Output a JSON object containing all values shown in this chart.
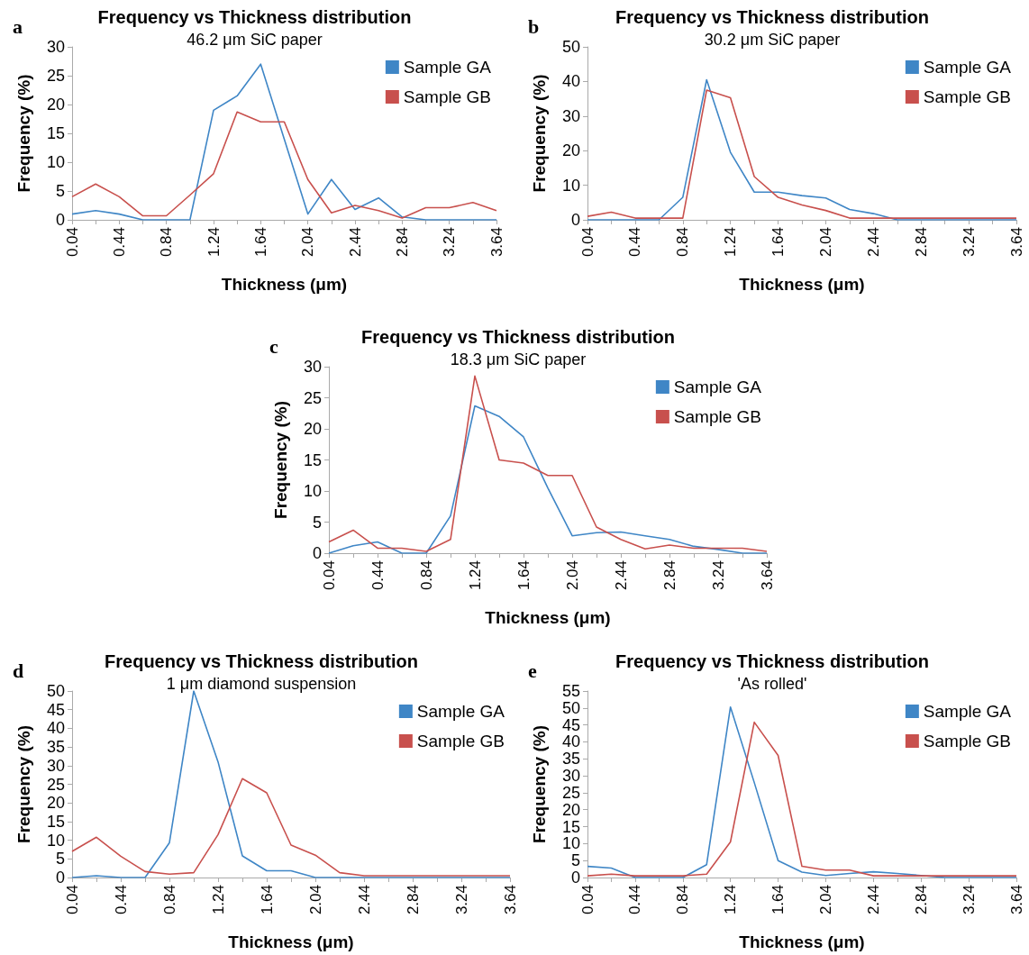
{
  "chart_data": [
    {
      "type": "line",
      "title": "Frequency vs Thickness distribution",
      "subtitle": "46.2 μm SiC paper",
      "xlabel": "Thickness (μm)",
      "ylabel": "Frequency (%)",
      "annotations": [
        "a"
      ],
      "legend": "top right",
      "marker": "none",
      "categories": [
        "0.04",
        null,
        "0.44",
        null,
        "0.84",
        null,
        "1.24",
        null,
        "1.64",
        null,
        "2.04",
        null,
        "2.44",
        null,
        "2.84",
        null,
        "3.24",
        null,
        "3.64"
      ],
      "ylim": [
        0,
        30
      ],
      "yticks": [
        0,
        5,
        10,
        15,
        20,
        25,
        30
      ],
      "series": [
        {
          "name": "Sample GA",
          "color": "#3f86c6",
          "values": [
            1,
            1.6,
            1,
            0,
            0,
            0,
            19,
            21.5,
            27,
            14,
            1,
            7,
            1.8,
            3.8,
            0.5,
            0,
            0,
            0,
            0
          ]
        },
        {
          "name": "Sample GB",
          "color": "#c8504d",
          "values": [
            4,
            6.2,
            4,
            0.7,
            0.7,
            4.3,
            8,
            18.7,
            17,
            17,
            7,
            1.2,
            2.5,
            1.6,
            0.3,
            2.1,
            2.1,
            3,
            1.6
          ]
        }
      ]
    },
    {
      "type": "line",
      "title": "Frequency vs Thickness distribution",
      "subtitle": "30.2 μm SiC paper",
      "xlabel": "Thickness (μm)",
      "ylabel": "Frequency (%)",
      "annotations": [
        "b"
      ],
      "legend": "top right",
      "marker": "none",
      "categories": [
        "0.04",
        null,
        "0.44",
        null,
        "0.84",
        null,
        "1.24",
        null,
        "1.64",
        null,
        "2.04",
        null,
        "2.44",
        null,
        "2.84",
        null,
        "3.24",
        null,
        "3.64"
      ],
      "ylim": [
        0,
        50
      ],
      "yticks": [
        0,
        10,
        20,
        30,
        40,
        50
      ],
      "series": [
        {
          "name": "Sample GA",
          "color": "#3f86c6",
          "values": [
            0,
            0,
            0,
            0,
            6.5,
            40.5,
            19.5,
            8,
            8,
            7,
            6.3,
            3,
            1.8,
            0,
            0,
            0,
            0,
            0,
            0
          ]
        },
        {
          "name": "Sample GB",
          "color": "#c8504d",
          "values": [
            1,
            2.2,
            0.5,
            0.5,
            0.5,
            37.5,
            35.3,
            12.5,
            6.5,
            4.3,
            2.7,
            0.5,
            0.5,
            0.5,
            0.5,
            0.5,
            0.5,
            0.5,
            0.5
          ]
        }
      ]
    },
    {
      "type": "line",
      "title": "Frequency vs Thickness distribution",
      "subtitle": "18.3 μm SiC paper",
      "xlabel": "Thickness (μm)",
      "ylabel": "Frequency (%)",
      "annotations": [
        "c"
      ],
      "legend": "top right",
      "marker": "none",
      "categories": [
        "0.04",
        null,
        "0.44",
        null,
        "0.84",
        null,
        "1.24",
        null,
        "1.64",
        null,
        "2.04",
        null,
        "2.44",
        null,
        "2.84",
        null,
        "3.24",
        null,
        "3.64"
      ],
      "ylim": [
        0,
        30
      ],
      "yticks": [
        0,
        5,
        10,
        15,
        20,
        25,
        30
      ],
      "series": [
        {
          "name": "Sample GA",
          "color": "#3f86c6",
          "values": [
            0,
            1.2,
            1.8,
            0,
            0,
            6,
            23.7,
            22,
            18.7,
            10.5,
            2.8,
            3.3,
            3.4,
            2.8,
            2.2,
            1.1,
            0.6,
            0,
            0
          ]
        },
        {
          "name": "Sample GB",
          "color": "#c8504d",
          "values": [
            1.8,
            3.7,
            0.8,
            0.8,
            0.3,
            2.2,
            28.5,
            15,
            14.5,
            12.5,
            12.5,
            4.2,
            2.2,
            0.7,
            1.3,
            0.8,
            0.8,
            0.8,
            0.3
          ]
        }
      ]
    },
    {
      "type": "line",
      "title": "Frequency vs Thickness distribution",
      "subtitle": "1 μm diamond suspension",
      "xlabel": "Thickness (μm)",
      "ylabel": "Frequency (%)",
      "annotations": [
        "d"
      ],
      "legend": "top right",
      "marker": "none",
      "categories": [
        "0.04",
        null,
        "0.44",
        null,
        "0.84",
        null,
        "1.24",
        null,
        "1.64",
        null,
        "2.04",
        null,
        "2.44",
        null,
        "2.84",
        null,
        "3.24",
        null,
        "3.64"
      ],
      "ylim": [
        0,
        50
      ],
      "yticks": [
        0,
        5,
        10,
        15,
        20,
        25,
        30,
        35,
        40,
        45,
        50
      ],
      "series": [
        {
          "name": "Sample GA",
          "color": "#3f86c6",
          "values": [
            0,
            0.5,
            0,
            0,
            9.3,
            50,
            31,
            5.8,
            1.8,
            1.8,
            0,
            0,
            0,
            0,
            0,
            0,
            0,
            0,
            0
          ]
        },
        {
          "name": "Sample GB",
          "color": "#c8504d",
          "values": [
            7,
            10.8,
            5.7,
            1.6,
            0.9,
            1.3,
            11.5,
            26.5,
            22.7,
            8.7,
            6,
            1.3,
            0.5,
            0.5,
            0.5,
            0.5,
            0.5,
            0.5,
            0.5
          ]
        }
      ]
    },
    {
      "type": "line",
      "title": "Frequency vs Thickness distribution",
      "subtitle": "'As rolled'",
      "xlabel": "Thickness (μm)",
      "ylabel": "Frequency (%)",
      "annotations": [
        "e"
      ],
      "legend": "top right",
      "marker": "none",
      "categories": [
        "0.04",
        null,
        "0.44",
        null,
        "0.84",
        null,
        "1.24",
        null,
        "1.64",
        null,
        "2.04",
        null,
        "2.44",
        null,
        "2.84",
        null,
        "3.24",
        null,
        "3.64"
      ],
      "ylim": [
        0,
        55
      ],
      "yticks": [
        0,
        5,
        10,
        15,
        20,
        25,
        30,
        35,
        40,
        45,
        50,
        55
      ],
      "series": [
        {
          "name": "Sample GA",
          "color": "#3f86c6",
          "values": [
            3.3,
            2.8,
            0,
            0,
            0,
            3.8,
            50.3,
            28,
            5,
            1.6,
            0.6,
            1.2,
            1.7,
            1.2,
            0.6,
            0,
            0,
            0,
            0
          ]
        },
        {
          "name": "Sample GB",
          "color": "#c8504d",
          "values": [
            0.5,
            1,
            0.5,
            0.5,
            0.5,
            1,
            10.5,
            45.8,
            36,
            3.3,
            2.2,
            2.2,
            0.5,
            0.5,
            0.5,
            0.5,
            0.5,
            0.5,
            0.5
          ]
        }
      ]
    }
  ]
}
